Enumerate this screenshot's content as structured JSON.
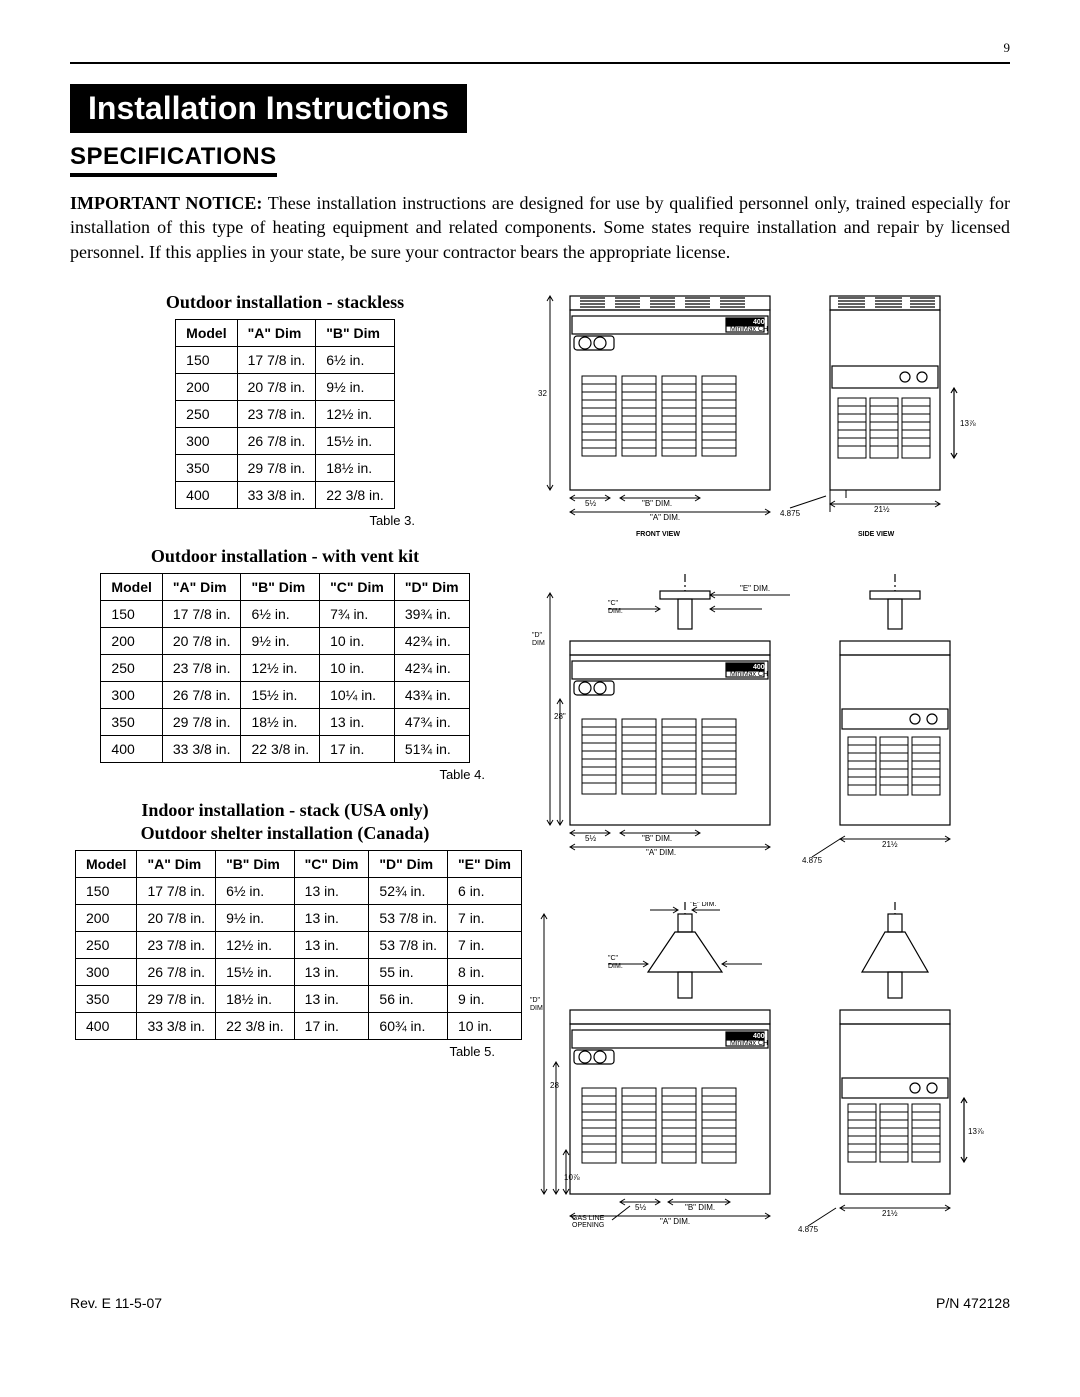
{
  "page_number": "9",
  "title_bar": "Installation Instructions",
  "section_heading": "SPECIFICATIONS",
  "notice_lead": "IMPORTANT NOTICE:",
  "notice_body": "These installation instructions are designed for use by qualified personnel only, trained especially for installation of this type of heating equipment and related components. Some states require installation and repair by licensed personnel.  If this applies in your state, be sure your contractor bears the appropriate license.",
  "table3": {
    "title": "Outdoor installation - stackless",
    "caption": "Table 3.",
    "columns": [
      "Model",
      "\"A\" Dim",
      "\"B\" Dim"
    ],
    "rows": [
      [
        "150",
        "17 7/8 in.",
        "6½ in."
      ],
      [
        "200",
        "20 7/8 in.",
        "9½ in."
      ],
      [
        "250",
        "23 7/8 in.",
        "12½ in."
      ],
      [
        "300",
        "26 7/8 in.",
        "15½ in."
      ],
      [
        "350",
        "29 7/8 in.",
        "18½ in."
      ],
      [
        "400",
        "33 3/8 in.",
        "22 3/8 in."
      ]
    ]
  },
  "table4": {
    "title": "Outdoor installation - with vent kit",
    "caption": "Table 4.",
    "columns": [
      "Model",
      "\"A\" Dim",
      "\"B\" Dim",
      "\"C\" Dim",
      "\"D\" Dim"
    ],
    "rows": [
      [
        "150",
        "17 7/8 in.",
        "6½ in.",
        "7¾ in.",
        "39¾ in."
      ],
      [
        "200",
        "20 7/8 in.",
        "9½ in.",
        "10 in.",
        "42¾ in."
      ],
      [
        "250",
        "23 7/8 in.",
        "12½ in.",
        "10 in.",
        "42¾ in."
      ],
      [
        "300",
        "26 7/8 in.",
        "15½ in.",
        "10¼ in.",
        "43¾ in."
      ],
      [
        "350",
        "29 7/8 in.",
        "18½ in.",
        "13 in.",
        "47¾ in."
      ],
      [
        "400",
        "33 3/8 in.",
        "22 3/8 in.",
        "17 in.",
        "51¾ in."
      ]
    ]
  },
  "table5": {
    "title_line1": "Indoor installation - stack (USA only)",
    "title_line2": "Outdoor shelter installation (Canada)",
    "caption": "Table 5.",
    "columns": [
      "Model",
      "\"A\" Dim",
      "\"B\" Dim",
      "\"C\" Dim",
      "\"D\" Dim",
      "\"E\" Dim"
    ],
    "rows": [
      [
        "150",
        "17 7/8 in.",
        "6½ in.",
        "13 in.",
        "52¾ in.",
        "6 in."
      ],
      [
        "200",
        "20 7/8 in.",
        "9½ in.",
        "13 in.",
        "53 7/8 in.",
        "7 in."
      ],
      [
        "250",
        "23 7/8 in.",
        "12½ in.",
        "13 in.",
        "53 7/8 in.",
        "7 in."
      ],
      [
        "300",
        "26 7/8 in.",
        "15½ in.",
        "13 in.",
        "55 in.",
        "8 in."
      ],
      [
        "350",
        "29 7/8 in.",
        "18½ in.",
        "13 in.",
        "56 in.",
        "9 in."
      ],
      [
        "400",
        "33 3/8 in.",
        "22 3/8 in.",
        "17 in.",
        "60¾ in.",
        "10 in."
      ]
    ]
  },
  "diagram1": {
    "front_label": "FRONT VIEW",
    "side_label": "SIDE VIEW",
    "model_badge": "400",
    "brand": "MiniMax CH",
    "dim_32": "32",
    "dim_5half": "5½",
    "dim_B": "\"B\" DIM.",
    "dim_A": "\"A\" DIM.",
    "dim_4875": "4.875",
    "dim_13_78": "13⅞",
    "dim_21half": "21½"
  },
  "diagram2": {
    "dim_C": "\"C\"\nDIM.",
    "dim_E": "\"E\" DIM.",
    "dim_D": "\"D\"\nDIM",
    "model_badge": "400",
    "brand": "MiniMax CH",
    "dim_28": "28\"",
    "dim_5half": "5½",
    "dim_B": "\"B\" DIM.",
    "dim_A": "\"A\"  DIM.",
    "dim_4875": "4.875",
    "dim_21half": "21½"
  },
  "diagram3": {
    "dim_E": "\"E\" DIM.",
    "dim_C": "\"C\"\nDIM.",
    "dim_D": "\"D\"\nDIM",
    "model_badge": "400",
    "brand": "MiniMax CH",
    "dim_28": "28",
    "dim_10_78": "10⅞",
    "gas_line": "GAS LINE\nOPENING",
    "dim_5half": "5½",
    "dim_B": "\"B\" DIM.",
    "dim_A": "\"A\"  DIM.",
    "dim_4875": "4.875",
    "dim_13_78": "13⅞",
    "dim_21half": "21½"
  },
  "footer_left": "Rev. E   11-5-07",
  "footer_right": "P/N  472128"
}
